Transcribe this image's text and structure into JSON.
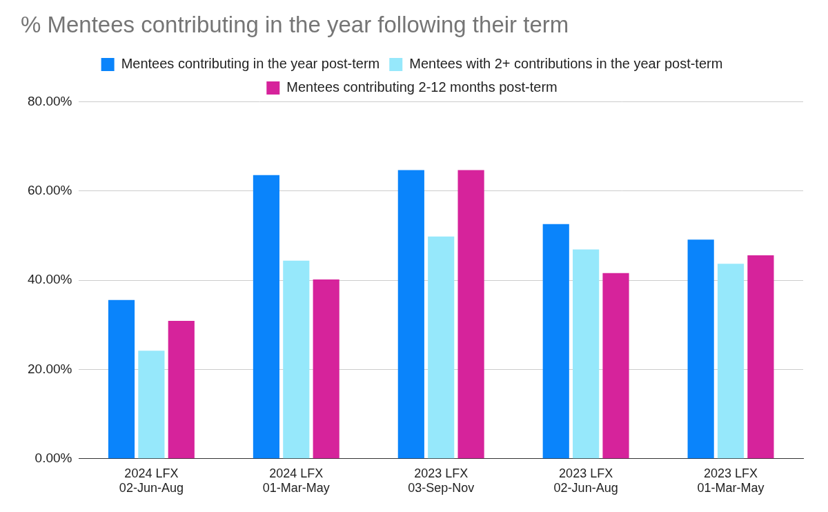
{
  "chart_data": {
    "type": "bar",
    "title": "% Mentees contributing in the year following their term",
    "categories": [
      [
        "2024 LFX",
        "02-Jun-Aug"
      ],
      [
        "2024 LFX",
        "01-Mar-May"
      ],
      [
        "2023 LFX",
        "03-Sep-Nov"
      ],
      [
        "2023 LFX",
        "02-Jun-Aug"
      ],
      [
        "2023 LFX",
        "01-Mar-May"
      ]
    ],
    "series": [
      {
        "name": "Mentees contributing in the year post-term",
        "color": "#0a84fb",
        "values": [
          35.6,
          63.6,
          64.7,
          52.6,
          49.1
        ]
      },
      {
        "name": "Mentees with 2+ contributions in the year post-term",
        "color": "#96e8fb",
        "values": [
          24.2,
          44.4,
          49.8,
          46.9,
          43.7
        ]
      },
      {
        "name": "Mentees contributing 2-12 months post-term",
        "color": "#d6239b",
        "values": [
          30.9,
          40.2,
          64.7,
          41.6,
          45.6
        ]
      }
    ],
    "ylim": [
      0,
      80
    ],
    "yticks": [
      {
        "value": 0,
        "label": "0.00%"
      },
      {
        "value": 20,
        "label": "20.00%"
      },
      {
        "value": 40,
        "label": "40.00%"
      },
      {
        "value": 60,
        "label": "60.00%"
      },
      {
        "value": 80,
        "label": "80.00%"
      }
    ],
    "grid": true,
    "legend": "top"
  }
}
